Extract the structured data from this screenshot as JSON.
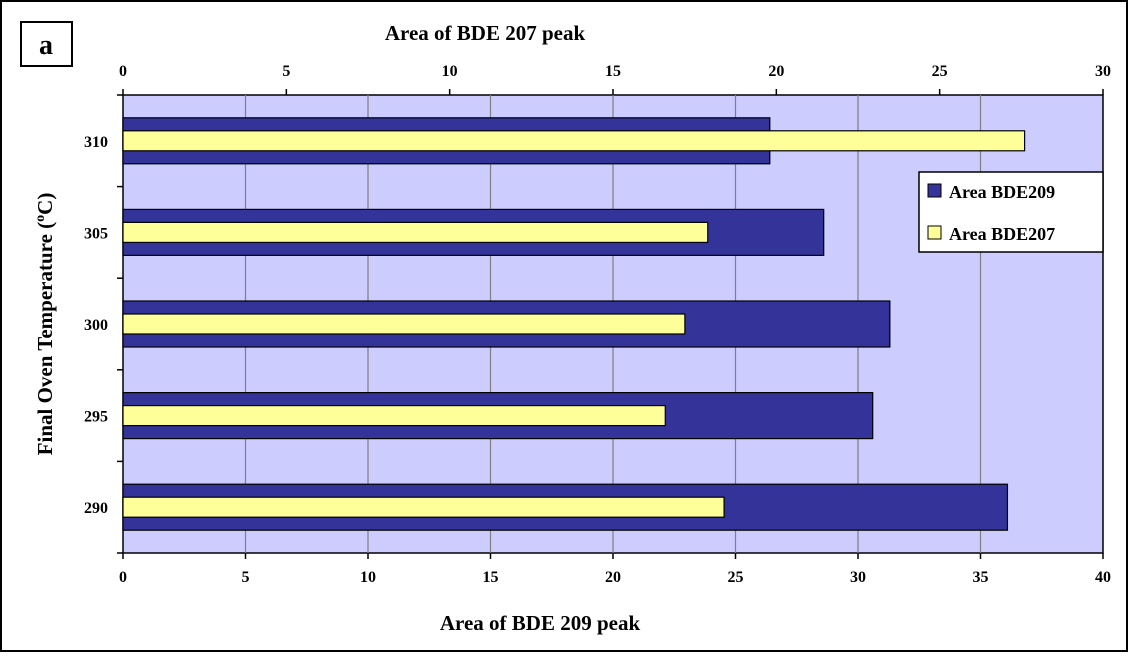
{
  "panel_label": "a",
  "colors": {
    "plot_bg": "#ccccff",
    "bde209": "#333399",
    "bde207": "#ffff99",
    "grid": "#808080"
  },
  "chart_data": {
    "type": "bar",
    "orientation": "horizontal",
    "categories": [
      "290",
      "295",
      "300",
      "305",
      "310"
    ],
    "ylabel": "Final Oven Temperature (°C)",
    "ylabel_parts": {
      "pre": "Final Oven Temperature (",
      "sup": "o",
      "post": "C)"
    },
    "x_bottom": {
      "label": "Area of BDE 209 peak",
      "range": [
        0,
        40
      ],
      "ticks": [
        0,
        5,
        10,
        15,
        20,
        25,
        30,
        35,
        40
      ]
    },
    "x_top": {
      "label": "Area of BDE 207 peak",
      "range": [
        0,
        30
      ],
      "ticks": [
        0,
        5,
        10,
        15,
        20,
        25,
        30
      ]
    },
    "grid": true,
    "legend_position": "right",
    "series": [
      {
        "name": "Area BDE209",
        "axis": "bottom",
        "values": [
          36.1,
          30.6,
          31.3,
          28.6,
          26.4
        ]
      },
      {
        "name": "Area BDE207",
        "axis": "top",
        "values": [
          18.4,
          16.6,
          17.2,
          17.9,
          27.6
        ]
      }
    ]
  }
}
